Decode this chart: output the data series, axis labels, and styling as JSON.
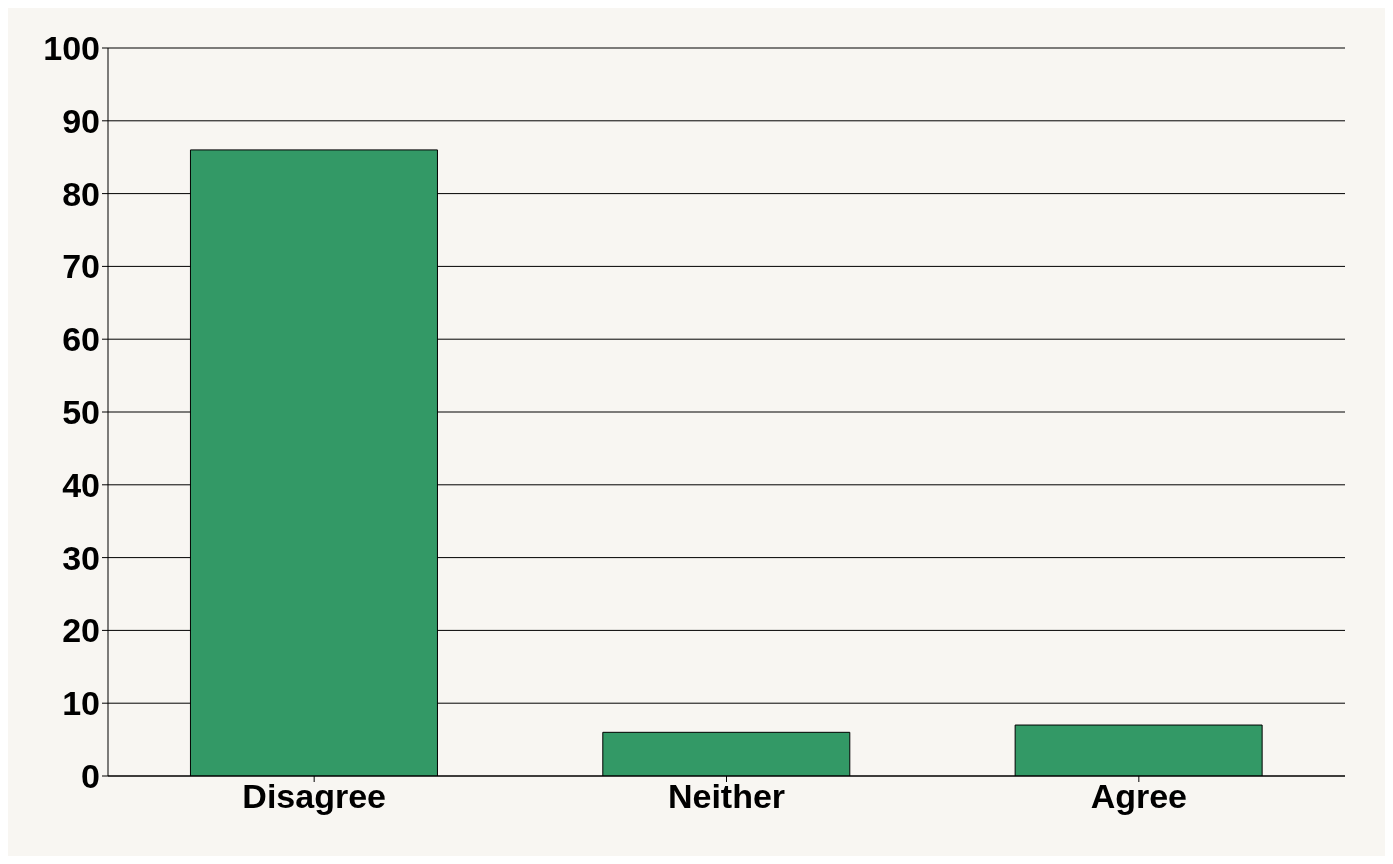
{
  "chart_data": {
    "type": "bar",
    "categories": [
      "Disagree",
      "Neither",
      "Agree"
    ],
    "values": [
      86,
      6,
      7
    ],
    "color": "#339966",
    "ylim": [
      0,
      100
    ],
    "yticks": [
      0,
      10,
      20,
      30,
      40,
      50,
      60,
      70,
      80,
      90,
      100
    ],
    "grid": "y"
  }
}
